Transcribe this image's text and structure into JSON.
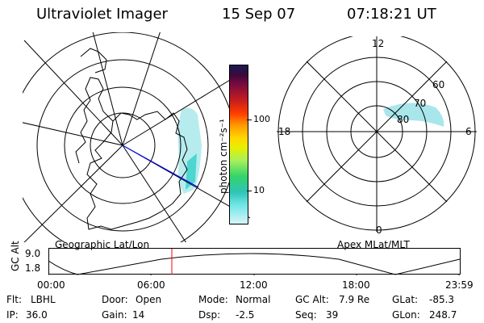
{
  "header": {
    "instrument": "Ultraviolet Imager",
    "date": "15 Sep 07",
    "time": "07:18:21 UT"
  },
  "left_map": {
    "caption": "Geographic Lat/Lon"
  },
  "right_map": {
    "caption": "Apex MLat/MLT",
    "mlt_labels": {
      "top": "12",
      "right": "6",
      "bottom": "0",
      "left": "18"
    },
    "lat_labels": [
      "60",
      "70",
      "80"
    ]
  },
  "colorbar": {
    "unit": "photon cm⁻²s⁻¹",
    "ticks": [
      "100",
      "10"
    ]
  },
  "altitude_plot": {
    "ylabel": "GC Alt",
    "yticks": [
      "9.0",
      "1.8"
    ],
    "xticks": [
      "00:00",
      "06:00",
      "12:00",
      "18:00",
      "23:59"
    ],
    "current_time_marker": "07:18"
  },
  "info": {
    "flt_label": "Flt:",
    "flt_value": "LBHL",
    "ip_label": "IP:",
    "ip_value": "36.0",
    "door_label": "Door:",
    "door_value": "Open",
    "gain_label": "Gain:",
    "gain_value": "14",
    "mode_label": "Mode:",
    "mode_value": "Normal",
    "dsp_label": "Dsp:",
    "dsp_value": "-2.5",
    "gcalt_label": "GC Alt:",
    "gcalt_value": "7.9 Re",
    "seq_label": "Seq:",
    "seq_value": "39",
    "glat_label": "GLat:",
    "glat_value": "-85.3",
    "glon_label": "GLon:",
    "glon_value": "248.7"
  },
  "colors": {
    "aurora": "#9fe3ea",
    "vector_line": "#0000ff",
    "time_marker": "#ff0000"
  }
}
